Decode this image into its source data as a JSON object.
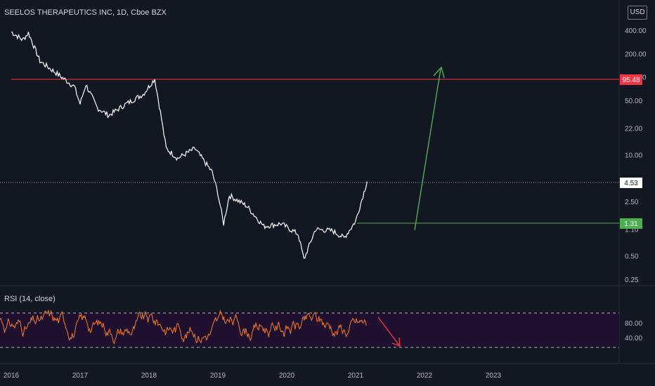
{
  "header": {
    "title": "SEELOS THERAPEUTICS INC, 1D, Cboe BZX",
    "currency": "USD"
  },
  "rsi": {
    "title": "RSI (14, close)",
    "upper_band": 70,
    "lower_band": 30,
    "tick_labels": [
      "80.00",
      "40.00"
    ]
  },
  "colors": {
    "background": "#131722",
    "price_line": "#ffffff",
    "rsi_line": "#f57c1f",
    "rsi_band": "#1f1030",
    "resistance": "#f23645",
    "support": "#4caf50",
    "arrow_up": "#4caf50",
    "arrow_down": "#f23645",
    "axis_text": "#b2b5be"
  },
  "chart_data": {
    "type": "line",
    "y_scale": "log",
    "y_tick_labels": [
      "400.00",
      "200.00",
      "100.00",
      "50.00",
      "22.00",
      "10.00",
      "4.53",
      "2.50",
      "1.10",
      "0.50",
      "0.25"
    ],
    "x_tick_labels": [
      "2016",
      "2017",
      "2018",
      "2019",
      "2020",
      "2021",
      "2022",
      "2023"
    ],
    "series": [
      {
        "values_approx": [
          {
            "x": "2016-01",
            "y": 380
          },
          {
            "x": "2016-03",
            "y": 300
          },
          {
            "x": "2016-04",
            "y": 370
          },
          {
            "x": "2016-06",
            "y": 160
          },
          {
            "x": "2016-09",
            "y": 110
          },
          {
            "x": "2016-12",
            "y": 75
          },
          {
            "x": "2017-01",
            "y": 45
          },
          {
            "x": "2017-02",
            "y": 80
          },
          {
            "x": "2017-04",
            "y": 40
          },
          {
            "x": "2017-06",
            "y": 32
          },
          {
            "x": "2017-09",
            "y": 45
          },
          {
            "x": "2017-12",
            "y": 60
          },
          {
            "x": "2018-02",
            "y": 95
          },
          {
            "x": "2018-03",
            "y": 35
          },
          {
            "x": "2018-04",
            "y": 12
          },
          {
            "x": "2018-06",
            "y": 9
          },
          {
            "x": "2018-09",
            "y": 12
          },
          {
            "x": "2018-12",
            "y": 6
          },
          {
            "x": "2019-01",
            "y": 3.2
          },
          {
            "x": "2019-02",
            "y": 1.3
          },
          {
            "x": "2019-03",
            "y": 3.0
          },
          {
            "x": "2019-06",
            "y": 2.2
          },
          {
            "x": "2019-09",
            "y": 1.2
          },
          {
            "x": "2019-12",
            "y": 1.3
          },
          {
            "x": "2020-03",
            "y": 0.95
          },
          {
            "x": "2020-04",
            "y": 0.45
          },
          {
            "x": "2020-06",
            "y": 1.1
          },
          {
            "x": "2020-09",
            "y": 1.05
          },
          {
            "x": "2020-11",
            "y": 0.85
          },
          {
            "x": "2021-01",
            "y": 1.4
          },
          {
            "x": "2021-03",
            "y": 4.53
          }
        ]
      }
    ],
    "annotations": {
      "resistance_label": "95.48",
      "current_price_label": "4.53",
      "support_label": "1.31",
      "up_arrow": {
        "from": {
          "x": "2021-10",
          "y": 1.2
        },
        "to": {
          "x": "2022-01",
          "y": 150
        }
      }
    }
  }
}
